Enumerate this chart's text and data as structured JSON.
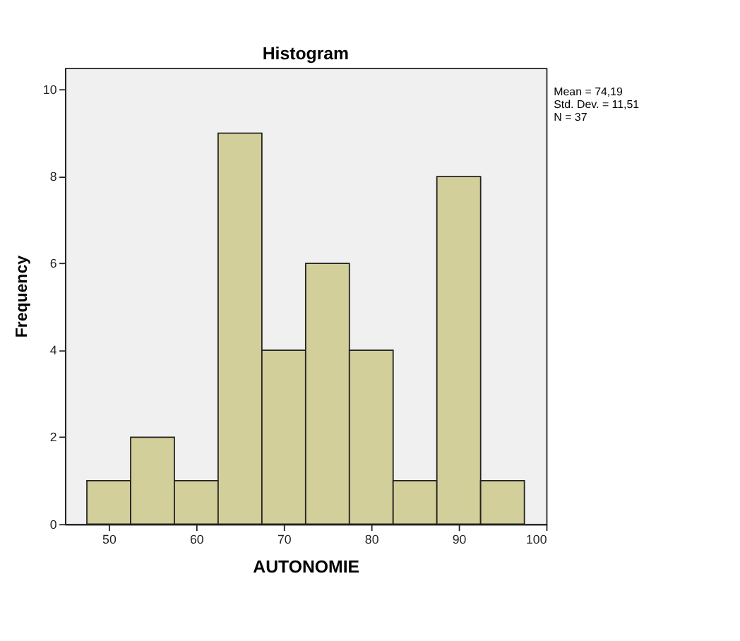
{
  "chart_data": {
    "type": "histogram",
    "title": "Histogram",
    "xlabel": "AUTONOMIE",
    "ylabel": "Frequency",
    "bins": [
      47.5,
      52.5,
      57.5,
      62.5,
      67.5,
      72.5,
      77.5,
      82.5,
      87.5,
      92.5,
      97.5
    ],
    "values": [
      1,
      2,
      1,
      9,
      4,
      6,
      4,
      1,
      8,
      1
    ],
    "color": "#d3cf9b",
    "xlim": [
      45,
      100
    ],
    "xticks": [
      50,
      60,
      70,
      80,
      90,
      100
    ],
    "ylim": [
      0,
      10.5
    ],
    "yticks": [
      0,
      2,
      4,
      6,
      8,
      10
    ],
    "grid": false,
    "annotations": [
      "Mean = 74,19",
      "Std. Dev. = 11,51",
      "N = 37"
    ]
  }
}
